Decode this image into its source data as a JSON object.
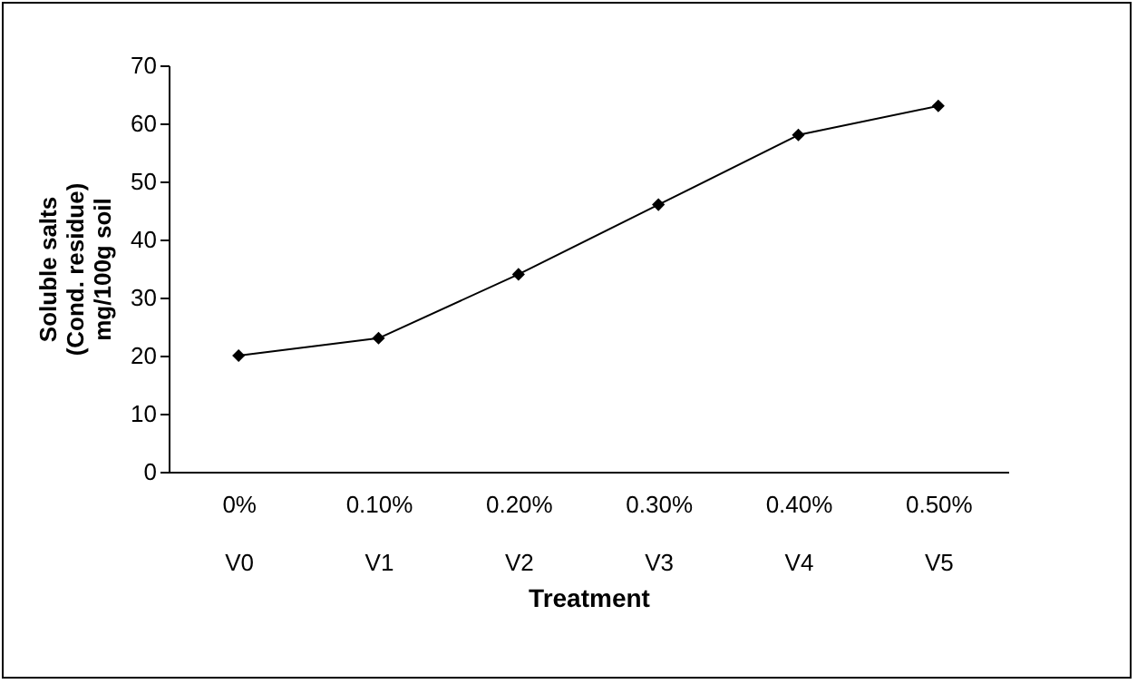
{
  "chart_data": {
    "type": "line",
    "categories": [
      "0%\nV0",
      "0.10%\nV1",
      "0.20%\nV2",
      "0.30%\nV3",
      "0.40%\nV4",
      "0.50%\nV5"
    ],
    "values": [
      20,
      23,
      34,
      46,
      58,
      63
    ],
    "color": "#000000",
    "marker": "diamond",
    "line_style": "solid",
    "xlabel": "Treatment",
    "ylabel": "Soluble salts\n(Cond. residue)\nmg/100g soil",
    "ylim": [
      0,
      70
    ],
    "yticks": [
      0,
      10,
      20,
      30,
      40,
      50,
      60,
      70
    ],
    "grid": false
  }
}
